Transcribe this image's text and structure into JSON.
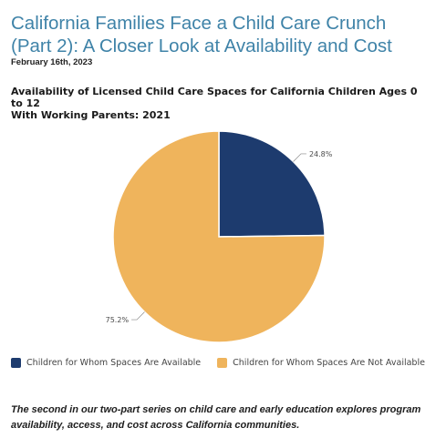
{
  "article": {
    "title_line1": "California Families Face a Child Care Crunch",
    "title_line2": "(Part 2): A Closer Look at Availability and Cost",
    "date": "February 16th, 2023",
    "description": "The second in our two-part series on child care and early education explores program availability, access, and cost across California communities."
  },
  "chart_data": {
    "type": "pie",
    "title_line1": "Availability of Licensed Child Care Spaces for California Children Ages 0 to 12",
    "title_line2": "With Working Parents: 2021",
    "slices": [
      {
        "label": "Children for Whom Spaces Are Available",
        "value": 24.8,
        "display": "24.8%",
        "color": "#1d3b6e"
      },
      {
        "label": "Children for Whom Spaces Are Not Available",
        "value": 75.2,
        "display": "75.2%",
        "color": "#efb45c"
      }
    ],
    "start_angle_deg": 0,
    "direction": "clockwise",
    "legend_position": "bottom"
  }
}
